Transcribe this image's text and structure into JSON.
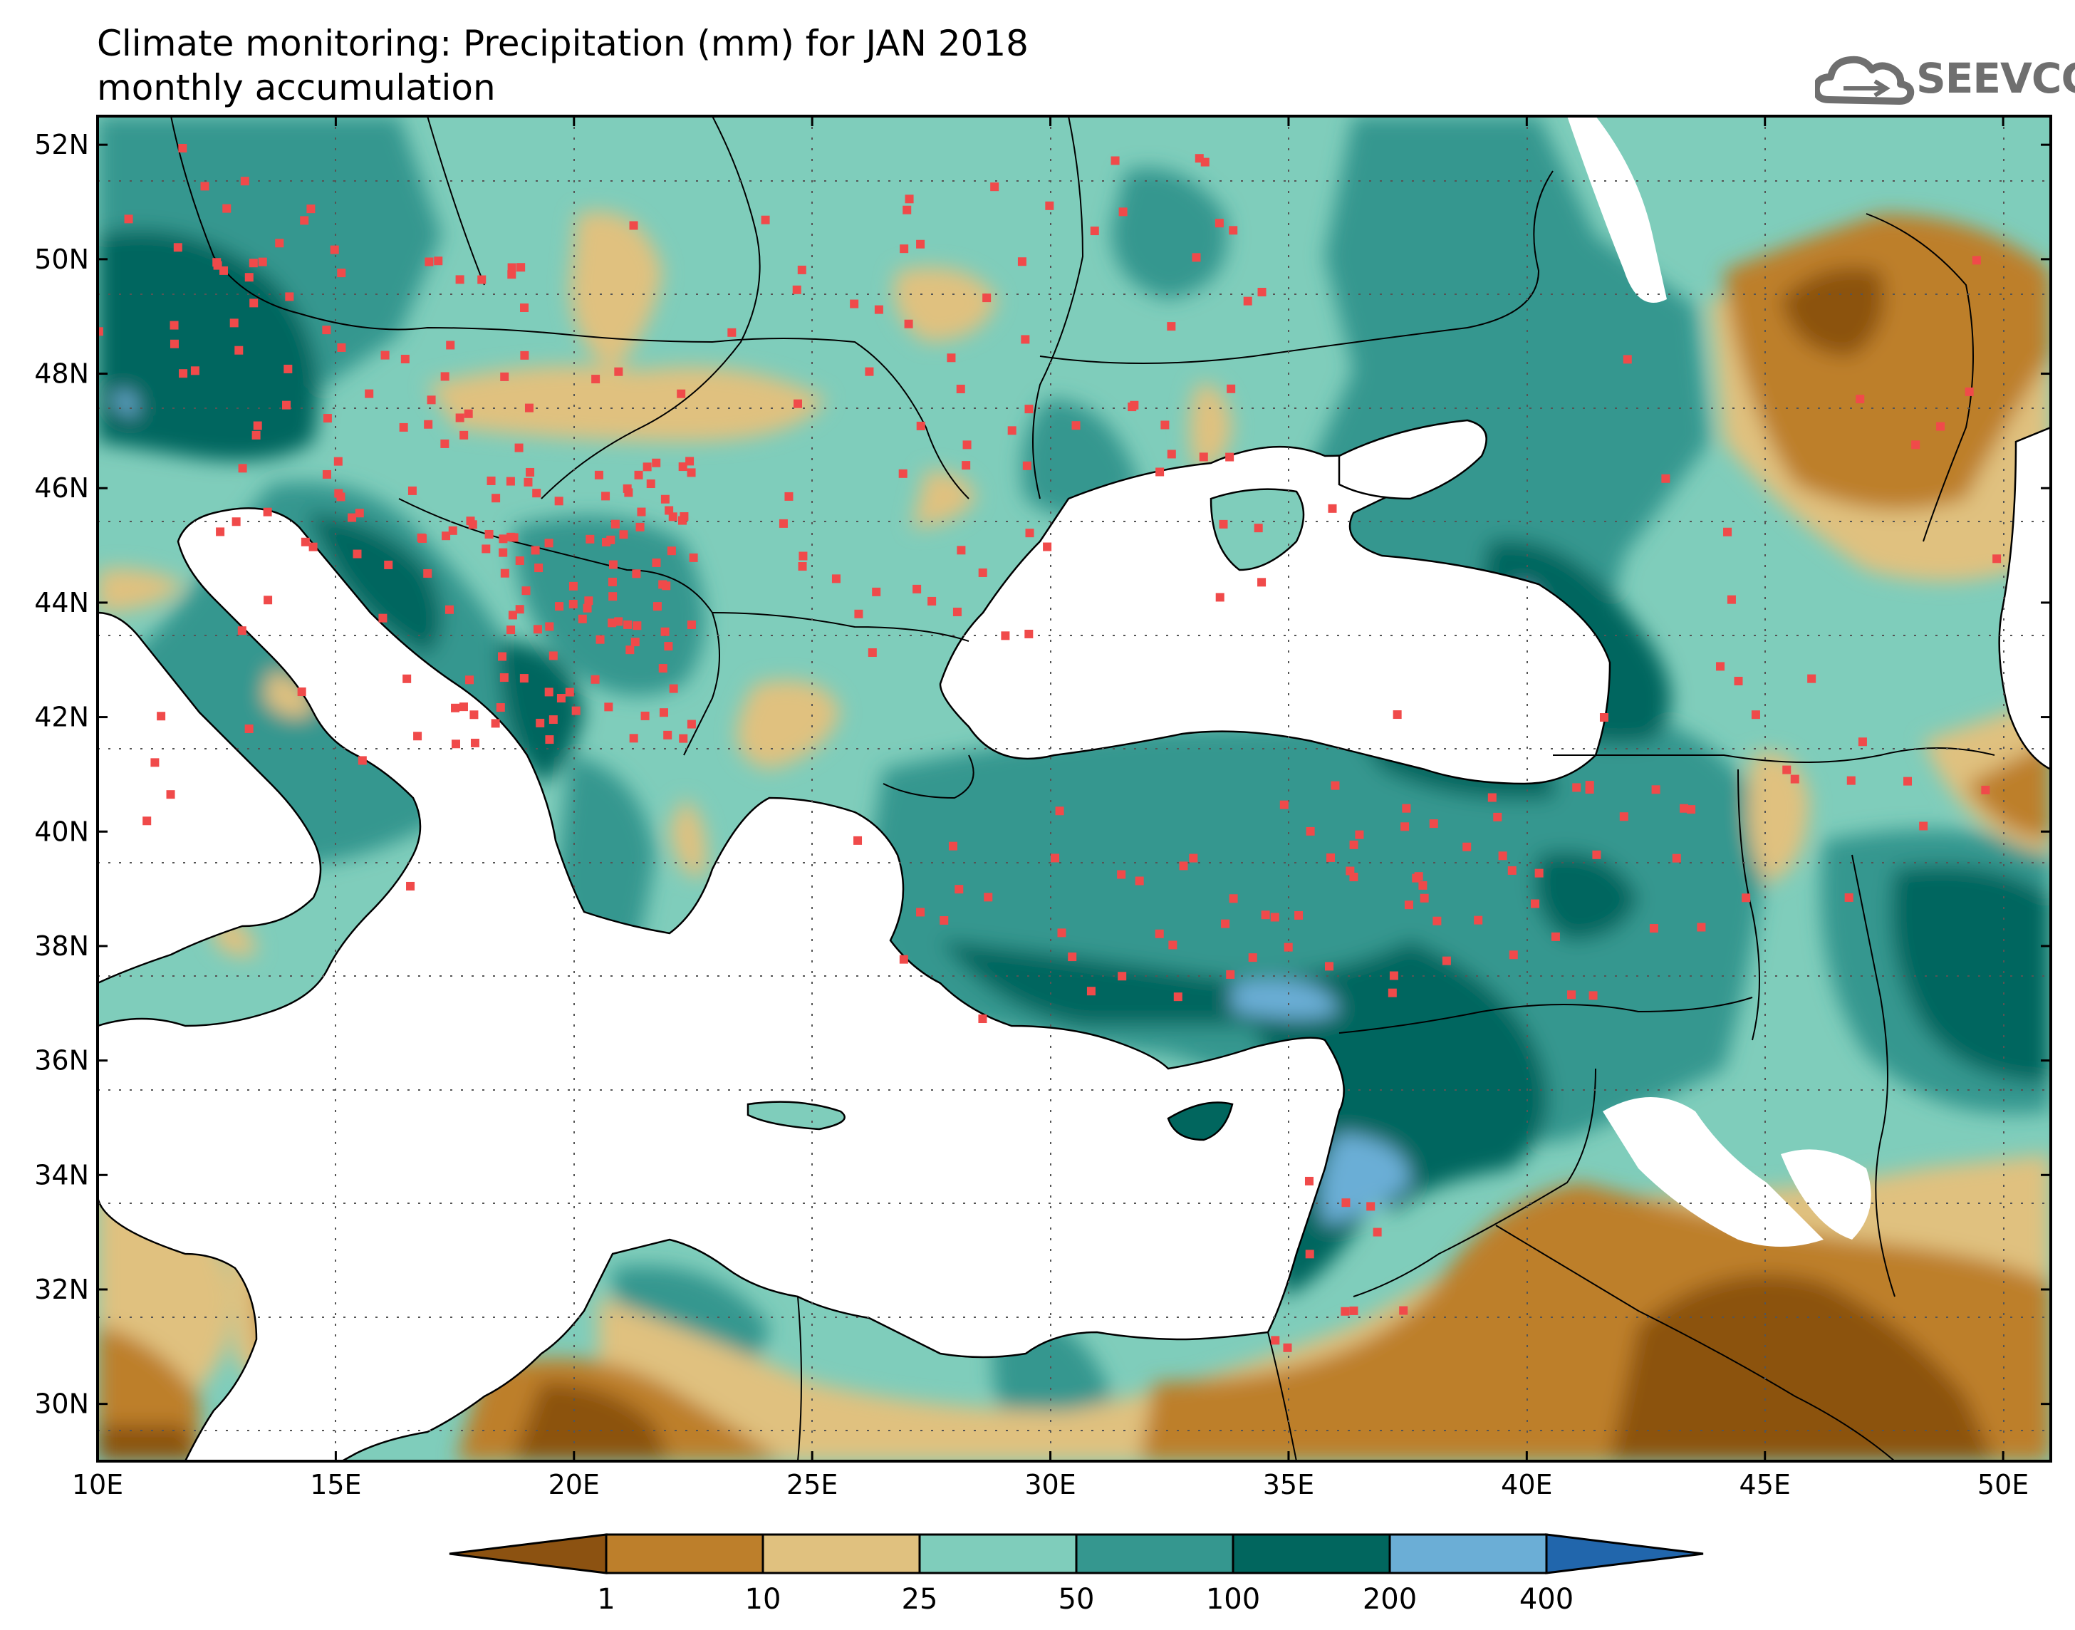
{
  "title": {
    "line1": "Climate monitoring: Precipitation (mm) for JAN 2018",
    "line2": "monthly accumulation"
  },
  "logo": {
    "text": "SEEVCCC",
    "icon": "cloud-icon",
    "color": "#6f6f6f"
  },
  "map": {
    "lon_range": [
      10,
      51
    ],
    "lat_range": [
      29,
      52.5
    ],
    "lon_ticks": [
      "10E",
      "15E",
      "20E",
      "25E",
      "30E",
      "35E",
      "40E",
      "45E",
      "50E"
    ],
    "lat_ticks": [
      "30N",
      "32N",
      "34N",
      "36N",
      "38N",
      "40N",
      "42N",
      "44N",
      "46N",
      "48N",
      "50N",
      "52N"
    ],
    "grid": "dotted",
    "station_marker_color": "#f04a4a"
  },
  "legend": {
    "thresholds": [
      "1",
      "10",
      "25",
      "50",
      "100",
      "200",
      "400"
    ],
    "colors": [
      "#8c5211",
      "#bd7f2b",
      "#e0c17f",
      "#7fcdbb",
      "#35978f",
      "#01665e",
      "#6baed6",
      "#2166ac"
    ],
    "extend": "both"
  }
}
